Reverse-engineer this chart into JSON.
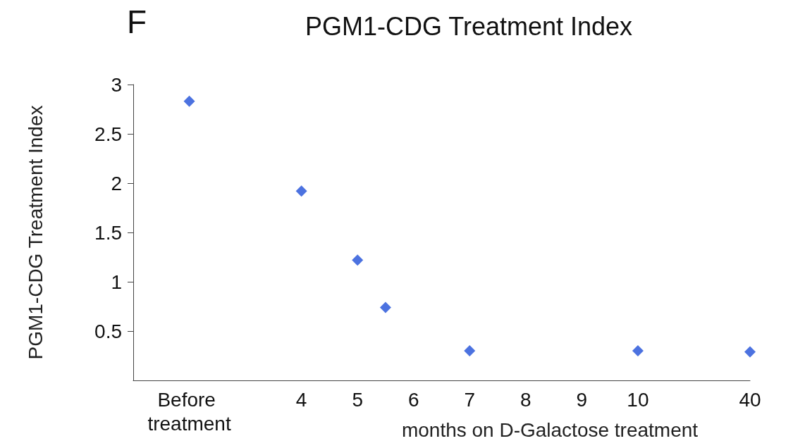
{
  "chart_data": {
    "type": "scatter",
    "title": "PGM1-CDG Treatment Index",
    "ylabel": "PGM1-CDG Treatment Index",
    "xlabel": "months on D-Galactose treatment",
    "annotations": [
      "F"
    ],
    "categories": [
      null,
      null,
      "Before treatment",
      null,
      null,
      null,
      "4",
      null,
      "5",
      null,
      "6",
      null,
      "7",
      null,
      "8",
      null,
      "9",
      null,
      "10",
      null,
      null,
      null,
      "40"
    ],
    "series": [
      {
        "color": "#1f4fd8",
        "values": [
          null,
          null,
          2.83,
          null,
          null,
          null,
          1.92,
          null,
          1.22,
          0.74,
          null,
          null,
          0.3,
          null,
          null,
          null,
          null,
          null,
          0.3,
          null,
          null,
          null,
          0.29
        ]
      }
    ],
    "ylim": [
      0,
      3
    ],
    "yticks": [
      0.5,
      1,
      1.5,
      2,
      2.5,
      3
    ],
    "marker": "diamond",
    "grid": false
  }
}
